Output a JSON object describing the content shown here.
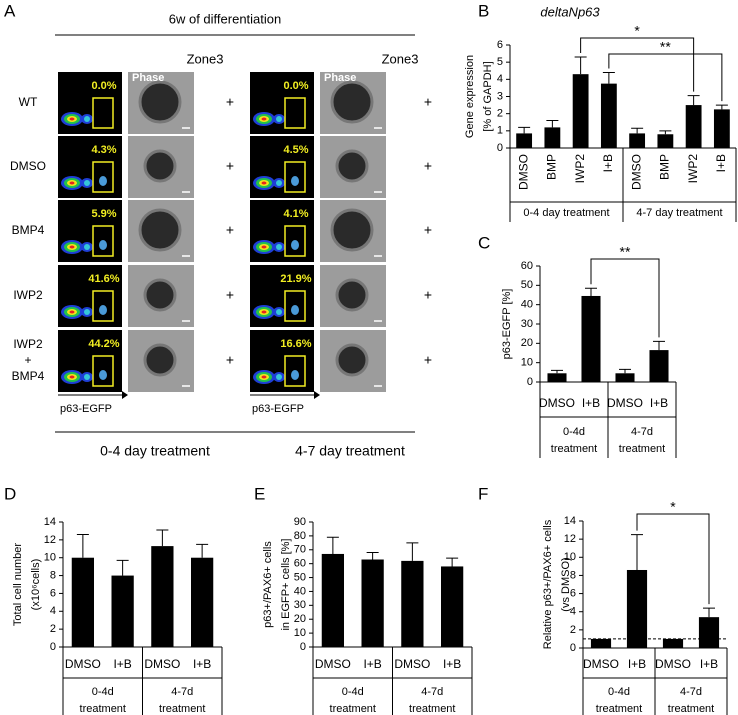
{
  "panel_a": {
    "label": "A",
    "title": "6w of differentiation",
    "zone_labels": [
      "Zone3",
      "Zone3"
    ],
    "phase_labels": [
      "Phase",
      "Phase"
    ],
    "rows": [
      {
        "label": [
          "WT"
        ],
        "percent": [
          "0.0%",
          "0.0%"
        ]
      },
      {
        "label": [
          "DMSO"
        ],
        "percent": [
          "4.3%",
          "4.5%"
        ]
      },
      {
        "label": [
          "BMP4"
        ],
        "percent": [
          "5.9%",
          "4.1%"
        ]
      },
      {
        "label": [
          "IWP2"
        ],
        "percent": [
          "41.6%",
          "21.9%"
        ]
      },
      {
        "label": [
          "IWP2",
          "+",
          "BMP4"
        ],
        "percent": [
          "44.2%",
          "16.6%"
        ]
      }
    ],
    "plus": "+",
    "axis_labels": [
      "p63-EGFP",
      "p63-EGFP"
    ],
    "treatments": [
      "0-4 day treatment",
      "4-7 day treatment"
    ]
  },
  "chart_data": [
    {
      "type": "bar",
      "label": "B",
      "title": "deltaNp63",
      "ylabel": [
        "Gene expression",
        "[% of GAPDH]"
      ],
      "categories": [
        "DMSO",
        "BMP",
        "IWP2",
        "I+B",
        "DMSO",
        "BMP",
        "IWP2",
        "I+B"
      ],
      "rotate_categories": true,
      "values": [
        0.85,
        1.2,
        4.3,
        3.75,
        0.85,
        0.8,
        2.5,
        2.25
      ],
      "errors": [
        0.35,
        0.4,
        1.0,
        0.65,
        0.3,
        0.2,
        0.55,
        0.25
      ],
      "groups": [
        [
          "0-4 day treatment"
        ],
        [
          "4-7 day treatment"
        ]
      ],
      "color": "#000000",
      "ylim": [
        0,
        6
      ],
      "yticks": [
        0,
        1,
        2,
        3,
        4,
        5,
        6
      ],
      "significance": [
        {
          "between": [
            2,
            6
          ],
          "label": "*"
        },
        {
          "between": [
            3,
            7
          ],
          "label": "**"
        }
      ]
    },
    {
      "type": "bar",
      "label": "C",
      "ylabel": [
        "p63-EGFP [%]"
      ],
      "categories": [
        "DMSO",
        "I+B",
        "DMSO",
        "I+B"
      ],
      "values": [
        4.5,
        44.5,
        4.5,
        16.5
      ],
      "errors": [
        1.5,
        4,
        2,
        4.5
      ],
      "groups": [
        [
          "0-4d",
          "treatment"
        ],
        [
          "4-7d",
          "treatment"
        ]
      ],
      "color": "#000000",
      "ylim": [
        0,
        60
      ],
      "yticks": [
        0,
        10,
        20,
        30,
        40,
        50,
        60
      ],
      "significance": [
        {
          "between": [
            1,
            3
          ],
          "label": "**"
        }
      ]
    },
    {
      "type": "bar",
      "label": "D",
      "ylabel": [
        "Total cell number",
        "(x10⁶cells)"
      ],
      "categories": [
        "DMSO",
        "I+B",
        "DMSO",
        "I+B"
      ],
      "values": [
        10,
        8,
        11.3,
        10
      ],
      "errors": [
        2.6,
        1.7,
        1.8,
        1.5
      ],
      "groups": [
        [
          "0-4d",
          "treatment"
        ],
        [
          "4-7d",
          "treatment"
        ]
      ],
      "color": "#000000",
      "ylim": [
        0,
        14
      ],
      "yticks": [
        0,
        2,
        4,
        6,
        8,
        10,
        12,
        14
      ]
    },
    {
      "type": "bar",
      "label": "E",
      "ylabel": [
        "p63+/PAX6+ cells",
        "in EGFP+ cells [%]"
      ],
      "categories": [
        "DMSO",
        "I+B",
        "DMSO",
        "I+B"
      ],
      "values": [
        67,
        63,
        62,
        58
      ],
      "errors": [
        12,
        5,
        13,
        6
      ],
      "groups": [
        [
          "0-4d",
          "treatment"
        ],
        [
          "4-7d",
          "treatment"
        ]
      ],
      "color": "#000000",
      "ylim": [
        0,
        90
      ],
      "yticks": [
        0,
        10,
        20,
        30,
        40,
        50,
        60,
        70,
        80,
        90
      ]
    },
    {
      "type": "bar",
      "label": "F",
      "ylabel": [
        "Relative p63+/PAX6+ cells",
        "(vs DMSO)"
      ],
      "categories": [
        "DMSO",
        "I+B",
        "DMSO",
        "I+B"
      ],
      "values": [
        1,
        8.6,
        1,
        3.4
      ],
      "errors": [
        null,
        3.9,
        null,
        1.0
      ],
      "groups": [
        [
          "0-4d",
          "treatment"
        ],
        [
          "4-7d",
          "treatment"
        ]
      ],
      "color": "#000000",
      "ylim": [
        0,
        14
      ],
      "yticks": [
        0,
        2,
        4,
        6,
        8,
        10,
        12,
        14
      ],
      "reference_line": 1,
      "significance": [
        {
          "between": [
            1,
            3
          ],
          "label": "*"
        }
      ]
    }
  ]
}
